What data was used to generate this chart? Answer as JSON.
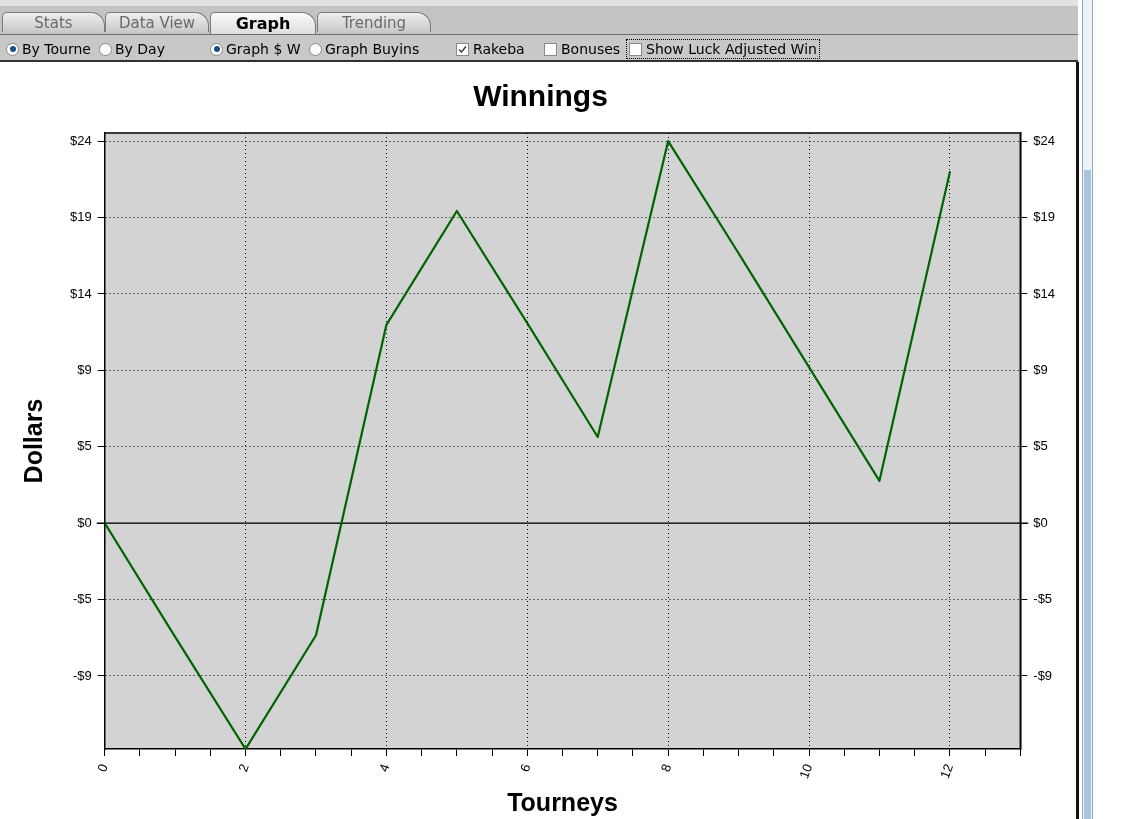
{
  "chart_data": {
    "type": "line",
    "title": "Winnings",
    "xlabel": "Tourneys",
    "ylabel": "Dollars",
    "x": [
      0,
      1,
      2,
      3,
      4,
      5,
      6,
      7,
      8,
      9,
      10,
      11,
      12
    ],
    "series": [
      {
        "color": "#006400",
        "values": [
          0,
          -7,
          -13.9,
          -6.9,
          12.2,
          19.2,
          12.3,
          5.3,
          23.5,
          16.6,
          9.6,
          2.6,
          21.6
        ]
      }
    ],
    "xlim": [
      0,
      13
    ],
    "xticks": [
      0,
      {
        "value": 0.5,
        "label": null
      },
      {
        "value": 1,
        "label": null
      },
      {
        "value": 1.5,
        "label": null
      },
      2,
      {
        "value": 2.5,
        "label": null
      },
      {
        "value": 3,
        "label": null
      },
      {
        "value": 3.5,
        "label": null
      },
      4,
      {
        "value": 4.5,
        "label": null
      },
      {
        "value": 5,
        "label": null
      },
      {
        "value": 5.5,
        "label": null
      },
      6,
      {
        "value": 6.5,
        "label": null
      },
      {
        "value": 7,
        "label": null
      },
      {
        "value": 7.5,
        "label": null
      },
      8,
      {
        "value": 8.5,
        "label": null
      },
      {
        "value": 9,
        "label": null
      },
      {
        "value": 9.5,
        "label": null
      },
      10,
      {
        "value": 10.5,
        "label": null
      },
      {
        "value": 11,
        "label": null
      },
      {
        "value": 11.5,
        "label": null
      },
      12,
      {
        "value": 12.5,
        "label": null
      },
      {
        "value": 13,
        "label": null
      }
    ],
    "ylim": [
      -13.9,
      24
    ],
    "yticks": [
      {
        "value": -9.4,
        "label": "-$9"
      },
      {
        "value": -4.7,
        "label": "-$5"
      },
      {
        "value": 0,
        "label": "$0"
      },
      {
        "value": 4.7,
        "label": "$5"
      },
      {
        "value": 9.4,
        "label": "$9"
      },
      {
        "value": 14.1,
        "label": "$14"
      },
      {
        "value": 18.8,
        "label": "$19"
      },
      {
        "value": 23.5,
        "label": "$24"
      }
    ],
    "y2lim": [
      -13.9,
      24
    ],
    "y2ticks": [
      {
        "value": -9.4,
        "label": "-$9"
      },
      {
        "value": -4.7,
        "label": "-$5"
      },
      {
        "value": 0,
        "label": "$0"
      },
      {
        "value": 4.7,
        "label": "$5"
      },
      {
        "value": 9.4,
        "label": "$9"
      },
      {
        "value": 14.1,
        "label": "$14"
      },
      {
        "value": 18.8,
        "label": "$19"
      },
      {
        "value": 23.5,
        "label": "$24"
      }
    ],
    "grid": true,
    "marker": "none",
    "ref_lines": [
      {
        "axis": "y",
        "value": 0,
        "color": "#000000"
      }
    ],
    "annotations": [
      "Stats",
      "Data View",
      "Graph",
      "Trending",
      "By Tourne",
      "By Day",
      "Graph $ W",
      "Graph Buyins",
      "Rakeba",
      "Bonuses",
      "Show Luck Adjusted Win"
    ]
  }
}
